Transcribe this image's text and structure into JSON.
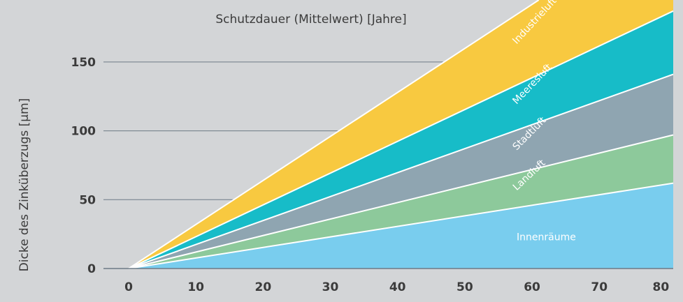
{
  "chart_data": {
    "type": "area",
    "title": "Schutzdauer (Mittelwert) [Jahre]",
    "xlabel": "",
    "ylabel": "Dicke des Zinküberzugs [µm]",
    "x_ticks": [
      0,
      10,
      20,
      30,
      40,
      50,
      60,
      70,
      80
    ],
    "y_ticks": [
      0,
      50,
      100,
      150
    ],
    "xlim": [
      0,
      81
    ],
    "ylim": [
      0,
      195
    ],
    "grid": "horizontal",
    "series": [
      {
        "name": "Innenräume",
        "color": "#79cdee",
        "x": [
          0,
          81
        ],
        "y": [
          0,
          62
        ]
      },
      {
        "name": "Landluft",
        "color": "#8dc99b",
        "x": [
          0,
          81
        ],
        "y": [
          0,
          97
        ]
      },
      {
        "name": "Stadtluft",
        "color": "#8fa5b1",
        "x": [
          0,
          81
        ],
        "y": [
          0,
          141
        ]
      },
      {
        "name": "Meeresluft",
        "color": "#17bcc8",
        "x": [
          0,
          81
        ],
        "y": [
          0,
          187
        ]
      },
      {
        "name": "Industrieluft",
        "color": "#f8c940",
        "x": [
          0,
          61
        ],
        "y": [
          0,
          195
        ]
      }
    ]
  }
}
